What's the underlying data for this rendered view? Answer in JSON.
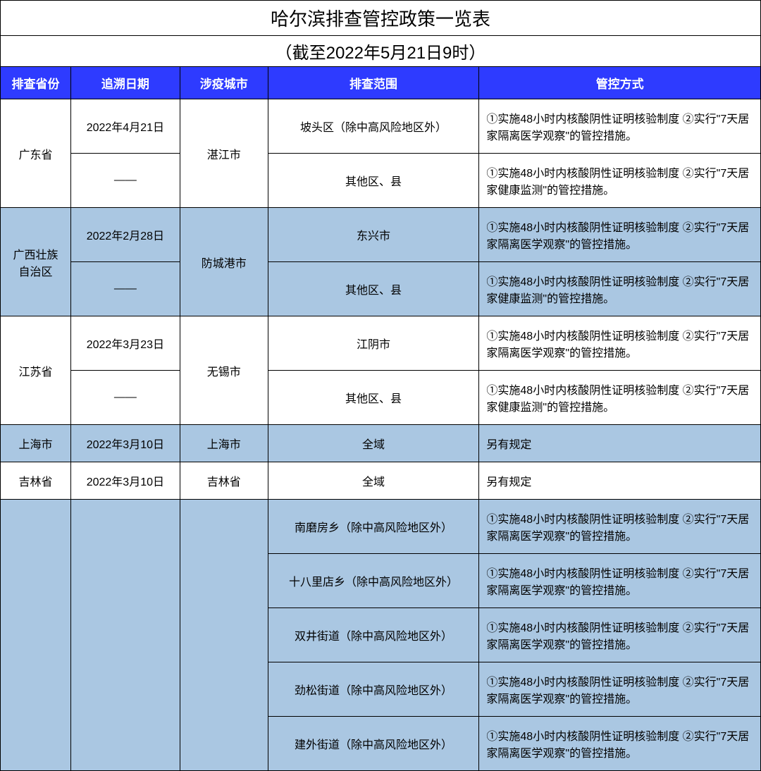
{
  "title": "哈尔滨排查管控政策一览表",
  "subtitle": "（截至2022年5月21日9时）",
  "headers": {
    "province": "排查省份",
    "date": "追溯日期",
    "city": "涉疫城市",
    "scope": "排查范围",
    "control": "管控方式"
  },
  "control_text_isolation": "①实施48小时内核酸阴性证明核验制度 ②实行\"7天居家隔离医学观察\"的管控措施。",
  "control_text_monitor": "①实施48小时内核酸阴性证明核验制度 ②实行\"7天居家健康监测\"的管控措施。",
  "control_text_other": "另有规定",
  "colors": {
    "header_bg": "#2e3bff",
    "header_text": "#ffffff",
    "row_white": "#ffffff",
    "row_blue": "#aac7e2",
    "border": "#000000"
  },
  "rows": [
    {
      "province": "广东省",
      "date": "2022年4月21日",
      "city": "湛江市",
      "scope": "坡头区（除中高风险地区外）",
      "bg": "white",
      "prov_rowspan": 2,
      "city_rowspan": 2,
      "control": "isolation"
    },
    {
      "date": "——",
      "scope": "其他区、县",
      "bg": "white",
      "control": "monitor"
    },
    {
      "province": "广西壮族自治区",
      "date": "2022年2月28日",
      "city": "防城港市",
      "scope": "东兴市",
      "bg": "blue",
      "prov_rowspan": 2,
      "city_rowspan": 2,
      "control": "isolation"
    },
    {
      "date": "——",
      "scope": "其他区、县",
      "bg": "blue",
      "control": "monitor"
    },
    {
      "province": "江苏省",
      "date": "2022年3月23日",
      "city": "无锡市",
      "scope": "江阴市",
      "bg": "white",
      "prov_rowspan": 2,
      "city_rowspan": 2,
      "control": "isolation"
    },
    {
      "date": "——",
      "scope": "其他区、县",
      "bg": "white",
      "control": "monitor"
    },
    {
      "province": "上海市",
      "date": "2022年3月10日",
      "city": "上海市",
      "scope": "全域",
      "bg": "blue",
      "control": "other"
    },
    {
      "province": "吉林省",
      "date": "2022年3月10日",
      "city": "吉林省",
      "scope": "全域",
      "bg": "white",
      "control": "other"
    },
    {
      "province": "",
      "date": "",
      "city": "",
      "scope": "南磨房乡（除中高风险地区外）",
      "bg": "blue",
      "prov_rowspan": 5,
      "date_rowspan": 5,
      "city_rowspan": 5,
      "control": "isolation"
    },
    {
      "scope": "十八里店乡（除中高风险地区外）",
      "bg": "blue",
      "control": "isolation"
    },
    {
      "scope": "双井街道（除中高风险地区外）",
      "bg": "blue",
      "control": "isolation"
    },
    {
      "scope": "劲松街道（除中高风险地区外）",
      "bg": "blue",
      "control": "isolation"
    },
    {
      "scope": "建外街道（除中高风险地区外）",
      "bg": "blue",
      "control": "isolation"
    }
  ]
}
